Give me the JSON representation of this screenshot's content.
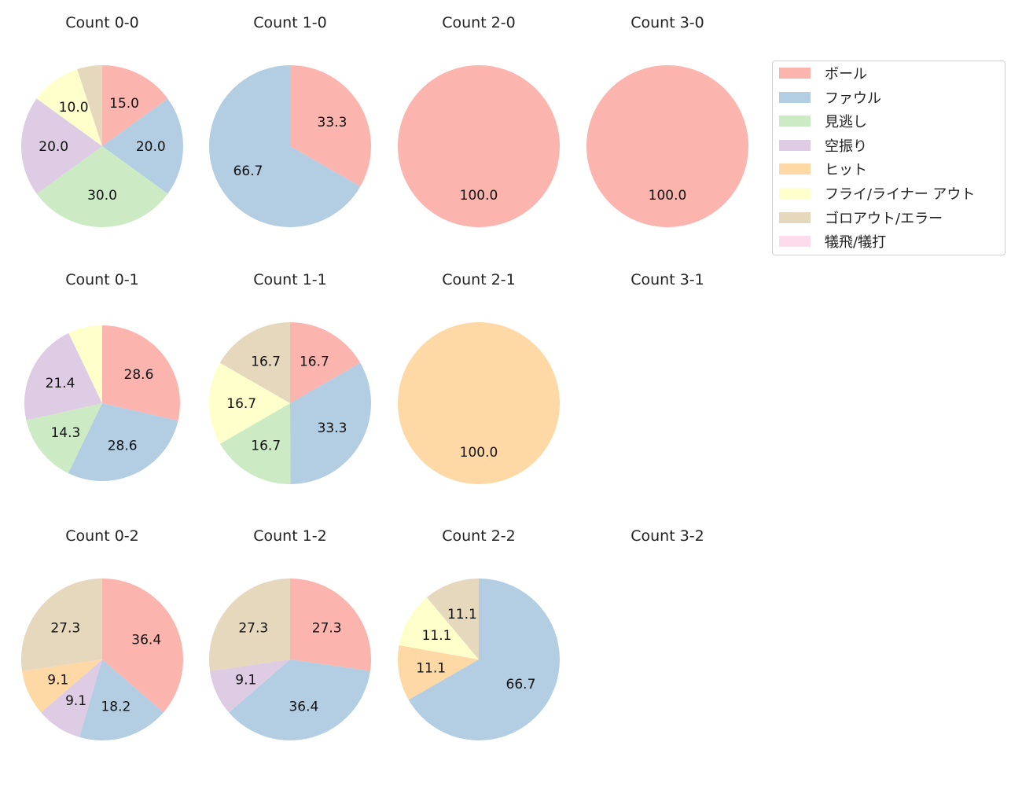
{
  "chart_data": {
    "type": "pie",
    "categories": [
      "ボール",
      "ファウル",
      "見逃し",
      "空振り",
      "ヒット",
      "フライ/ライナー アウト",
      "ゴロアウト/エラー",
      "犠飛/犠打"
    ],
    "colors": [
      "#fbb4ae",
      "#b3cde3",
      "#ccebc5",
      "#decbe4",
      "#fed9a6",
      "#ffffcc",
      "#e5d8bd",
      "#fddaec"
    ],
    "start_angle": 90,
    "direction": "clockwise",
    "legend_placement": "upper-right",
    "charts": [
      {
        "title": "Count 0-0",
        "values": [
          15.0,
          20.0,
          30.0,
          20.0,
          0,
          10.0,
          5.0,
          0
        ]
      },
      {
        "title": "Count 1-0",
        "values": [
          33.3,
          66.7,
          0,
          0,
          0,
          0,
          0,
          0
        ]
      },
      {
        "title": "Count 2-0",
        "values": [
          100.0,
          0,
          0,
          0,
          0,
          0,
          0,
          0
        ]
      },
      {
        "title": "Count 3-0",
        "values": [
          100.0,
          0,
          0,
          0,
          0,
          0,
          0,
          0
        ]
      },
      {
        "title": "Count 0-1",
        "values": [
          28.6,
          28.6,
          14.3,
          21.4,
          0,
          7.1,
          0,
          0
        ]
      },
      {
        "title": "Count 1-1",
        "values": [
          16.7,
          33.3,
          16.7,
          0,
          0,
          16.7,
          16.7,
          0
        ]
      },
      {
        "title": "Count 2-1",
        "values": [
          0,
          0,
          0,
          0,
          100.0,
          0,
          0,
          0
        ]
      },
      {
        "title": "Count 3-1",
        "values": []
      },
      {
        "title": "Count 0-2",
        "values": [
          36.4,
          18.2,
          0,
          9.1,
          9.1,
          0,
          27.3,
          0
        ]
      },
      {
        "title": "Count 1-2",
        "values": [
          27.3,
          36.4,
          0,
          9.1,
          0,
          0,
          27.3,
          0
        ]
      },
      {
        "title": "Count 2-2",
        "values": [
          0,
          66.7,
          0,
          0,
          11.1,
          11.1,
          11.1,
          0
        ]
      },
      {
        "title": "Count 3-2",
        "values": []
      }
    ]
  }
}
